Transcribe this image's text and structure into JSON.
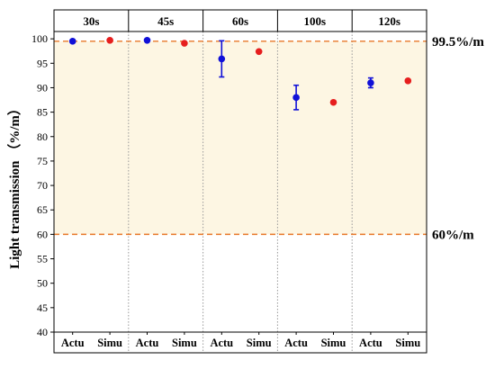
{
  "chart_data": {
    "type": "scatter",
    "ylabel": "Light transmission （%/m）",
    "ylim": [
      40,
      101.5
    ],
    "yticks": [
      40,
      45,
      50,
      55,
      60,
      65,
      70,
      75,
      80,
      85,
      90,
      95,
      100
    ],
    "categories": [
      "Actu",
      "Simu"
    ],
    "facets": [
      "30s",
      "45s",
      "60s",
      "100s",
      "120s"
    ],
    "band": {
      "from": 60,
      "to": 99.5,
      "color": "#fdf6e3"
    },
    "reference_lines": [
      {
        "value": 99.5,
        "label": "99.5%/m",
        "color": "#e8782a"
      },
      {
        "value": 60,
        "label": "60%/m",
        "color": "#e8782a"
      }
    ],
    "series": [
      {
        "name": "Actu",
        "color": "#1010d8",
        "values": [
          99.5,
          99.7,
          95.9,
          88.0,
          91.0
        ],
        "error_low": [
          null,
          null,
          92.2,
          85.5,
          90.0
        ],
        "error_high": [
          null,
          null,
          99.6,
          90.5,
          92.0
        ]
      },
      {
        "name": "Simu",
        "color": "#e61e1e",
        "values": [
          99.7,
          99.1,
          97.4,
          87.0,
          91.4
        ]
      }
    ]
  }
}
